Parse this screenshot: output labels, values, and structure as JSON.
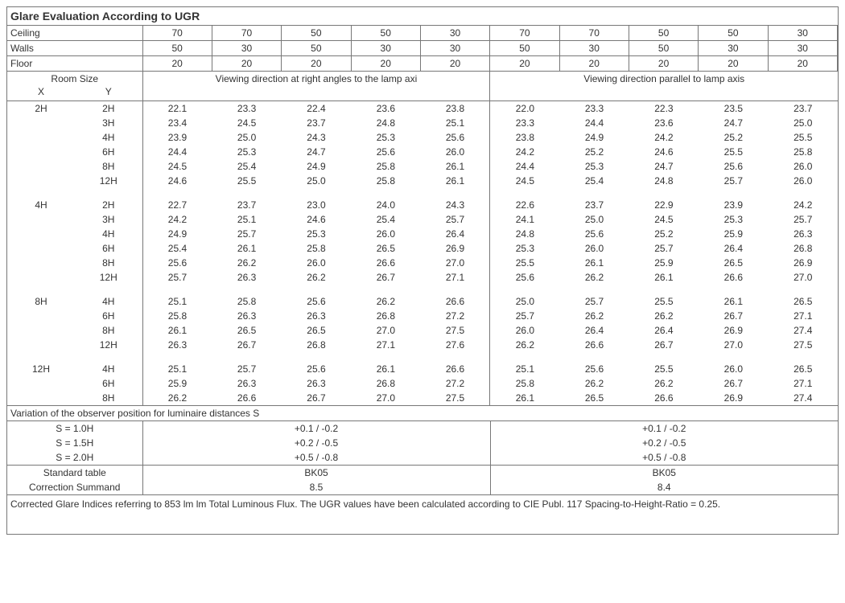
{
  "title": "Glare Evaluation According to UGR",
  "surfaceLabels": {
    "ceiling": "Ceiling",
    "walls": "Walls",
    "floor": "Floor"
  },
  "surfaces": {
    "ceiling": [
      "70",
      "70",
      "50",
      "50",
      "30",
      "70",
      "70",
      "50",
      "50",
      "30"
    ],
    "walls": [
      "50",
      "30",
      "50",
      "30",
      "30",
      "50",
      "30",
      "50",
      "30",
      "30"
    ],
    "floor": [
      "20",
      "20",
      "20",
      "20",
      "20",
      "20",
      "20",
      "20",
      "20",
      "20"
    ]
  },
  "roomSizeHdr": "Room Size",
  "xLabel": "X",
  "yLabel": "Y",
  "dirHdrLeft": "Viewing direction at right angles to the lamp axi",
  "dirHdrRight": "Viewing direction parallel to lamp axis",
  "groups": [
    {
      "x": "2H",
      "rows": [
        {
          "y": "2H",
          "v": [
            "22.1",
            "23.3",
            "22.4",
            "23.6",
            "23.8",
            "22.0",
            "23.3",
            "22.3",
            "23.5",
            "23.7"
          ]
        },
        {
          "y": "3H",
          "v": [
            "23.4",
            "24.5",
            "23.7",
            "24.8",
            "25.1",
            "23.3",
            "24.4",
            "23.6",
            "24.7",
            "25.0"
          ]
        },
        {
          "y": "4H",
          "v": [
            "23.9",
            "25.0",
            "24.3",
            "25.3",
            "25.6",
            "23.8",
            "24.9",
            "24.2",
            "25.2",
            "25.5"
          ]
        },
        {
          "y": "6H",
          "v": [
            "24.4",
            "25.3",
            "24.7",
            "25.6",
            "26.0",
            "24.2",
            "25.2",
            "24.6",
            "25.5",
            "25.8"
          ]
        },
        {
          "y": "8H",
          "v": [
            "24.5",
            "25.4",
            "24.9",
            "25.8",
            "26.1",
            "24.4",
            "25.3",
            "24.7",
            "25.6",
            "26.0"
          ]
        },
        {
          "y": "12H",
          "v": [
            "24.6",
            "25.5",
            "25.0",
            "25.8",
            "26.1",
            "24.5",
            "25.4",
            "24.8",
            "25.7",
            "26.0"
          ]
        }
      ]
    },
    {
      "x": "4H",
      "rows": [
        {
          "y": "2H",
          "v": [
            "22.7",
            "23.7",
            "23.0",
            "24.0",
            "24.3",
            "22.6",
            "23.7",
            "22.9",
            "23.9",
            "24.2"
          ]
        },
        {
          "y": "3H",
          "v": [
            "24.2",
            "25.1",
            "24.6",
            "25.4",
            "25.7",
            "24.1",
            "25.0",
            "24.5",
            "25.3",
            "25.7"
          ]
        },
        {
          "y": "4H",
          "v": [
            "24.9",
            "25.7",
            "25.3",
            "26.0",
            "26.4",
            "24.8",
            "25.6",
            "25.2",
            "25.9",
            "26.3"
          ]
        },
        {
          "y": "6H",
          "v": [
            "25.4",
            "26.1",
            "25.8",
            "26.5",
            "26.9",
            "25.3",
            "26.0",
            "25.7",
            "26.4",
            "26.8"
          ]
        },
        {
          "y": "8H",
          "v": [
            "25.6",
            "26.2",
            "26.0",
            "26.6",
            "27.0",
            "25.5",
            "26.1",
            "25.9",
            "26.5",
            "26.9"
          ]
        },
        {
          "y": "12H",
          "v": [
            "25.7",
            "26.3",
            "26.2",
            "26.7",
            "27.1",
            "25.6",
            "26.2",
            "26.1",
            "26.6",
            "27.0"
          ]
        }
      ]
    },
    {
      "x": "8H",
      "rows": [
        {
          "y": "4H",
          "v": [
            "25.1",
            "25.8",
            "25.6",
            "26.2",
            "26.6",
            "25.0",
            "25.7",
            "25.5",
            "26.1",
            "26.5"
          ]
        },
        {
          "y": "6H",
          "v": [
            "25.8",
            "26.3",
            "26.3",
            "26.8",
            "27.2",
            "25.7",
            "26.2",
            "26.2",
            "26.7",
            "27.1"
          ]
        },
        {
          "y": "8H",
          "v": [
            "26.1",
            "26.5",
            "26.5",
            "27.0",
            "27.5",
            "26.0",
            "26.4",
            "26.4",
            "26.9",
            "27.4"
          ]
        },
        {
          "y": "12H",
          "v": [
            "26.3",
            "26.7",
            "26.8",
            "27.1",
            "27.6",
            "26.2",
            "26.6",
            "26.7",
            "27.0",
            "27.5"
          ]
        }
      ]
    },
    {
      "x": "12H",
      "rows": [
        {
          "y": "4H",
          "v": [
            "25.1",
            "25.7",
            "25.6",
            "26.1",
            "26.6",
            "25.1",
            "25.6",
            "25.5",
            "26.0",
            "26.5"
          ]
        },
        {
          "y": "6H",
          "v": [
            "25.9",
            "26.3",
            "26.3",
            "26.8",
            "27.2",
            "25.8",
            "26.2",
            "26.2",
            "26.7",
            "27.1"
          ]
        },
        {
          "y": "8H",
          "v": [
            "26.2",
            "26.6",
            "26.7",
            "27.0",
            "27.5",
            "26.1",
            "26.5",
            "26.6",
            "26.9",
            "27.4"
          ]
        }
      ]
    }
  ],
  "variationHdr": "Variation of the observer position for luminaire distances S",
  "variation": [
    {
      "s": "S = 1.0H",
      "l": "+0.1 / -0.2",
      "r": "+0.1 / -0.2"
    },
    {
      "s": "S = 1.5H",
      "l": "+0.2 / -0.5",
      "r": "+0.2 / -0.5"
    },
    {
      "s": "S = 2.0H",
      "l": "+0.5 / -0.8",
      "r": "+0.5 / -0.8"
    }
  ],
  "standardTableLabel": "Standard table",
  "correctionLabel": "Correction Summand",
  "standardTable": {
    "l": "BK05",
    "r": "BK05"
  },
  "correction": {
    "l": "8.5",
    "r": "8.4"
  },
  "footer": "Corrected Glare Indices referring to 853 lm lm Total Luminous Flux. The UGR values have been calculated according to CIE Publ. 117    Spacing-to-Height-Ratio = 0.25."
}
